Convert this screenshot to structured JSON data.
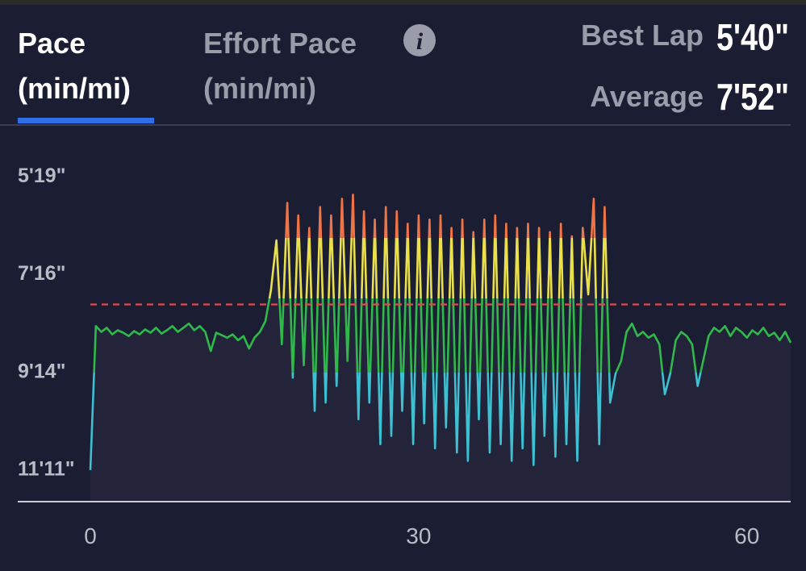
{
  "tabs": [
    {
      "label": "Pace",
      "unit": "(min/mi)",
      "active": true
    },
    {
      "label": "Effort Pace",
      "unit": "(min/mi)",
      "active": false
    }
  ],
  "stats": [
    {
      "label": "Best Lap",
      "value": "5'40\""
    },
    {
      "label": "Average",
      "value": "7'52\""
    }
  ],
  "chart_data": {
    "type": "line",
    "x": [
      0,
      0.5,
      1,
      1.5,
      2,
      2.5,
      3,
      3.5,
      4,
      4.5,
      5,
      5.5,
      6,
      6.5,
      7,
      7.5,
      8,
      8.5,
      9,
      9.5,
      10,
      10.5,
      11,
      11.5,
      12,
      12.5,
      13,
      13.5,
      14,
      14.5,
      15,
      15.5,
      16,
      16.5,
      17,
      17.5,
      18,
      18.5,
      19,
      19.5,
      20,
      20.5,
      21,
      21.5,
      22,
      22.5,
      23,
      23.5,
      24,
      24.5,
      25,
      25.5,
      26,
      26.5,
      27,
      27.5,
      28,
      28.5,
      29,
      29.5,
      30,
      30.5,
      31,
      31.5,
      32,
      32.5,
      33,
      33.5,
      34,
      34.5,
      35,
      35.5,
      36,
      36.5,
      37,
      37.5,
      38,
      38.5,
      39,
      39.5,
      40,
      40.5,
      41,
      41.5,
      42,
      42.5,
      43,
      43.5,
      44,
      44.5,
      45,
      45.5,
      46,
      46.5,
      47,
      47.5,
      48,
      48.5,
      49,
      49.5,
      50,
      50.5,
      51,
      51.5,
      52,
      52.5,
      53,
      53.5,
      54,
      54.5,
      55,
      55.5,
      56,
      56.5,
      57,
      57.5,
      58,
      58.5,
      59,
      59.5,
      60,
      60.5,
      61,
      61.5,
      62,
      62.5,
      63,
      63.5,
      64
    ],
    "values": [
      671,
      498,
      505,
      500,
      508,
      503,
      506,
      510,
      504,
      508,
      502,
      506,
      500,
      507,
      503,
      498,
      505,
      500,
      495,
      503,
      498,
      505,
      528,
      506,
      509,
      512,
      508,
      515,
      510,
      525,
      512,
      505,
      492,
      455,
      395,
      520,
      350,
      560,
      365,
      545,
      380,
      600,
      355,
      590,
      365,
      570,
      345,
      540,
      340,
      610,
      360,
      590,
      370,
      640,
      355,
      630,
      360,
      600,
      375,
      640,
      365,
      615,
      370,
      645,
      365,
      620,
      380,
      650,
      370,
      660,
      385,
      610,
      370,
      650,
      365,
      640,
      375,
      660,
      380,
      645,
      375,
      665,
      380,
      630,
      385,
      655,
      375,
      640,
      390,
      660,
      380,
      460,
      345,
      640,
      355,
      590,
      555,
      540,
      505,
      495,
      510,
      505,
      512,
      508,
      520,
      580,
      555,
      515,
      505,
      510,
      520,
      570,
      540,
      510,
      500,
      505,
      498,
      510,
      500,
      505,
      512,
      503,
      508,
      500,
      510,
      506,
      515,
      505,
      518
    ],
    "xlim": [
      0,
      64
    ],
    "xticks": [
      0,
      30,
      60
    ],
    "ylim": [
      709,
      300
    ],
    "yticks": [
      {
        "value": 319,
        "label": "5'19\""
      },
      {
        "value": 436,
        "label": "7'16\""
      },
      {
        "value": 554,
        "label": "9'14\""
      },
      {
        "value": 671,
        "label": "11'11\""
      }
    ],
    "zone_breaks": [
      392,
      465,
      554
    ],
    "zone_colors": [
      "#ef7446",
      "#e9e04c",
      "#2fb94b",
      "#3cc0d2"
    ],
    "reference_line": {
      "value": 472,
      "color": "#e5484d"
    }
  }
}
